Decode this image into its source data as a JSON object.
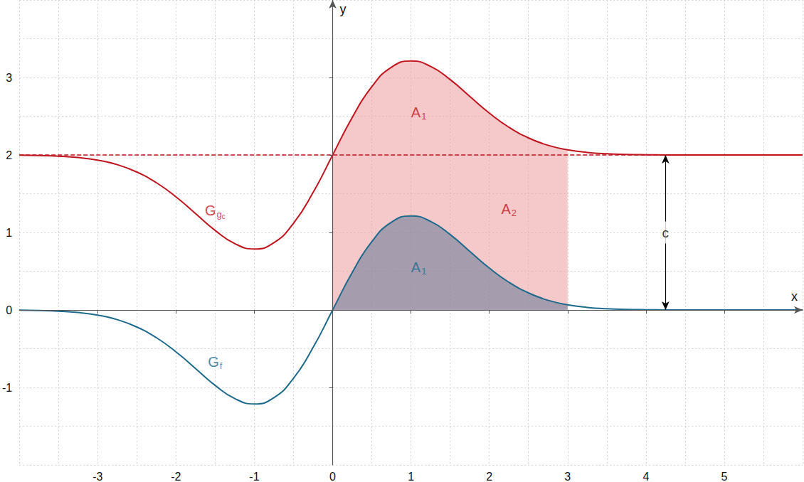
{
  "chart_data": {
    "type": "line",
    "x_label": "x",
    "y_label": "y",
    "xlim": [
      -4,
      6
    ],
    "ylim": [
      -2,
      4
    ],
    "xticks": [
      -3,
      -2,
      -1,
      0,
      1,
      2,
      3,
      4,
      5
    ],
    "yticks": [
      -1,
      0,
      1,
      2,
      3
    ],
    "grid": true,
    "x": [
      -4,
      -3.75,
      -3.5,
      -3.25,
      -3,
      -2.75,
      -2.5,
      -2.25,
      -2,
      -1.75,
      -1.5,
      -1.25,
      -1,
      -0.75,
      -0.5,
      -0.25,
      0,
      0.25,
      0.5,
      0.75,
      1,
      1.25,
      1.5,
      1.75,
      2,
      2.25,
      2.5,
      2.75,
      3,
      3.25,
      3.5,
      3.75,
      4,
      4.25,
      4.5,
      4.75,
      5,
      5.25,
      5.5,
      5.75,
      6
    ],
    "series": [
      {
        "label": {
          "base": "G",
          "sub": "g",
          "subsub": "c"
        },
        "label_x": -1.5,
        "label_y": 1.28,
        "color": "#c0141e",
        "line_style": "solid",
        "values": [
          1.997,
          1.993,
          1.985,
          1.967,
          1.933,
          1.875,
          1.78,
          1.642,
          1.459,
          1.243,
          1.026,
          0.856,
          0.787,
          0.868,
          1.118,
          1.515,
          2,
          2.485,
          2.882,
          3.132,
          3.213,
          3.144,
          2.974,
          2.757,
          2.541,
          2.358,
          2.22,
          2.125,
          2.067,
          2.033,
          2.015,
          2.007,
          2.003,
          2.001,
          2,
          2,
          2,
          2,
          2,
          2,
          2
        ],
        "fill": {
          "from": 0,
          "to": 3,
          "color": "#eea3a5"
        }
      },
      {
        "label": {
          "base": "G",
          "sub": "f"
        },
        "label_x": -1.5,
        "label_y": -0.67,
        "color": "#1d6a8c",
        "line_style": "solid",
        "values": [
          -0.003,
          -0.007,
          -0.015,
          -0.033,
          -0.067,
          -0.125,
          -0.22,
          -0.358,
          -0.541,
          -0.757,
          -0.974,
          -1.144,
          -1.213,
          -1.132,
          -0.882,
          -0.485,
          0,
          0.485,
          0.882,
          1.132,
          1.213,
          1.144,
          0.974,
          0.757,
          0.541,
          0.358,
          0.22,
          0.125,
          0.067,
          0.033,
          0.015,
          0.007,
          0.003,
          0.001,
          0,
          0,
          0,
          0,
          0,
          0,
          0
        ],
        "fill": {
          "from": 0,
          "to": 3,
          "color": "#6f7f9c"
        }
      }
    ],
    "asymptote": {
      "y": 2,
      "color": "#c0141e",
      "line_style": "dashed"
    },
    "c_arrow": {
      "x": 4.25,
      "from": 0,
      "label": "c",
      "color": "#000000"
    },
    "annotations": [
      {
        "base": "A",
        "sub": "1",
        "x": 1.1,
        "y": 2.55,
        "color": "#c0141e"
      },
      {
        "base": "A",
        "sub": "2",
        "x": 2.25,
        "y": 1.3,
        "color": "#c0141e"
      },
      {
        "base": "A",
        "sub": "1",
        "x": 1.1,
        "y": 0.55,
        "color": "#1d6a8c"
      }
    ]
  }
}
